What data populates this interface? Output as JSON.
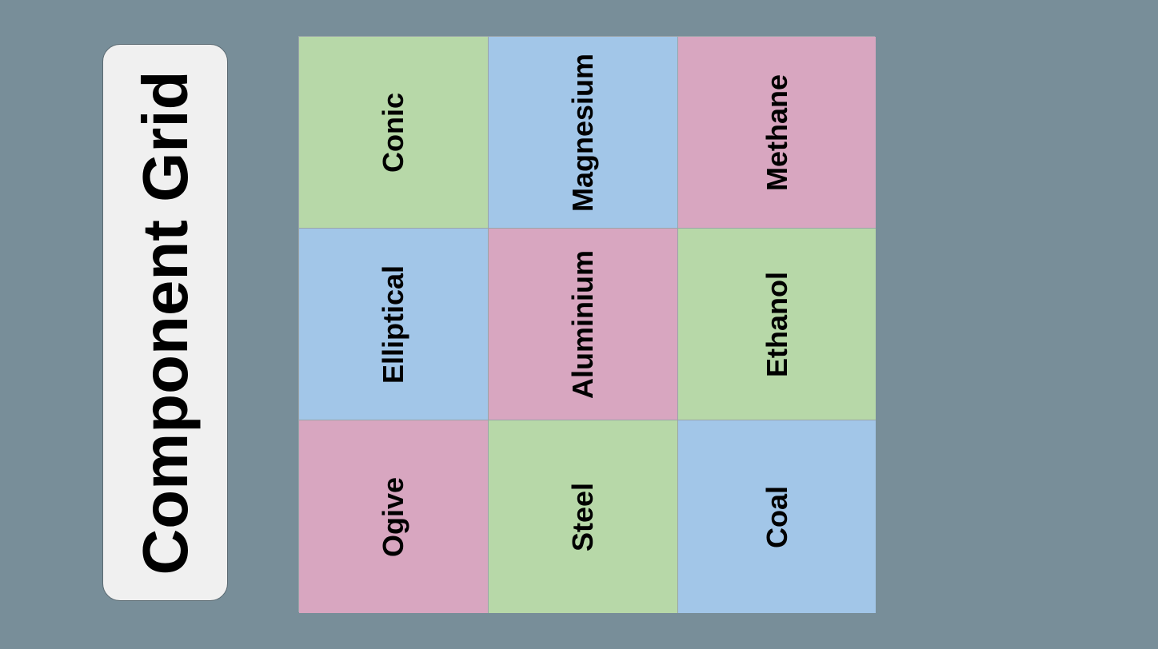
{
  "title": "Component Grid",
  "colors": {
    "background": "#788e99",
    "panel": "#f0f0f0",
    "green": "#b7d8a8",
    "blue": "#a2c6e8",
    "pink": "#d8a6c0"
  },
  "grid": {
    "rows": [
      [
        {
          "label": "Conic",
          "color": "#b7d8a8"
        },
        {
          "label": "Magnesium",
          "color": "#a2c6e8"
        },
        {
          "label": "Methane",
          "color": "#d8a6c0"
        }
      ],
      [
        {
          "label": "Elliptical",
          "color": "#a2c6e8"
        },
        {
          "label": "Aluminium",
          "color": "#d8a6c0"
        },
        {
          "label": "Ethanol",
          "color": "#b7d8a8"
        }
      ],
      [
        {
          "label": "Ogive",
          "color": "#d8a6c0"
        },
        {
          "label": "Steel",
          "color": "#b7d8a8"
        },
        {
          "label": "Coal",
          "color": "#a2c6e8"
        }
      ]
    ]
  }
}
